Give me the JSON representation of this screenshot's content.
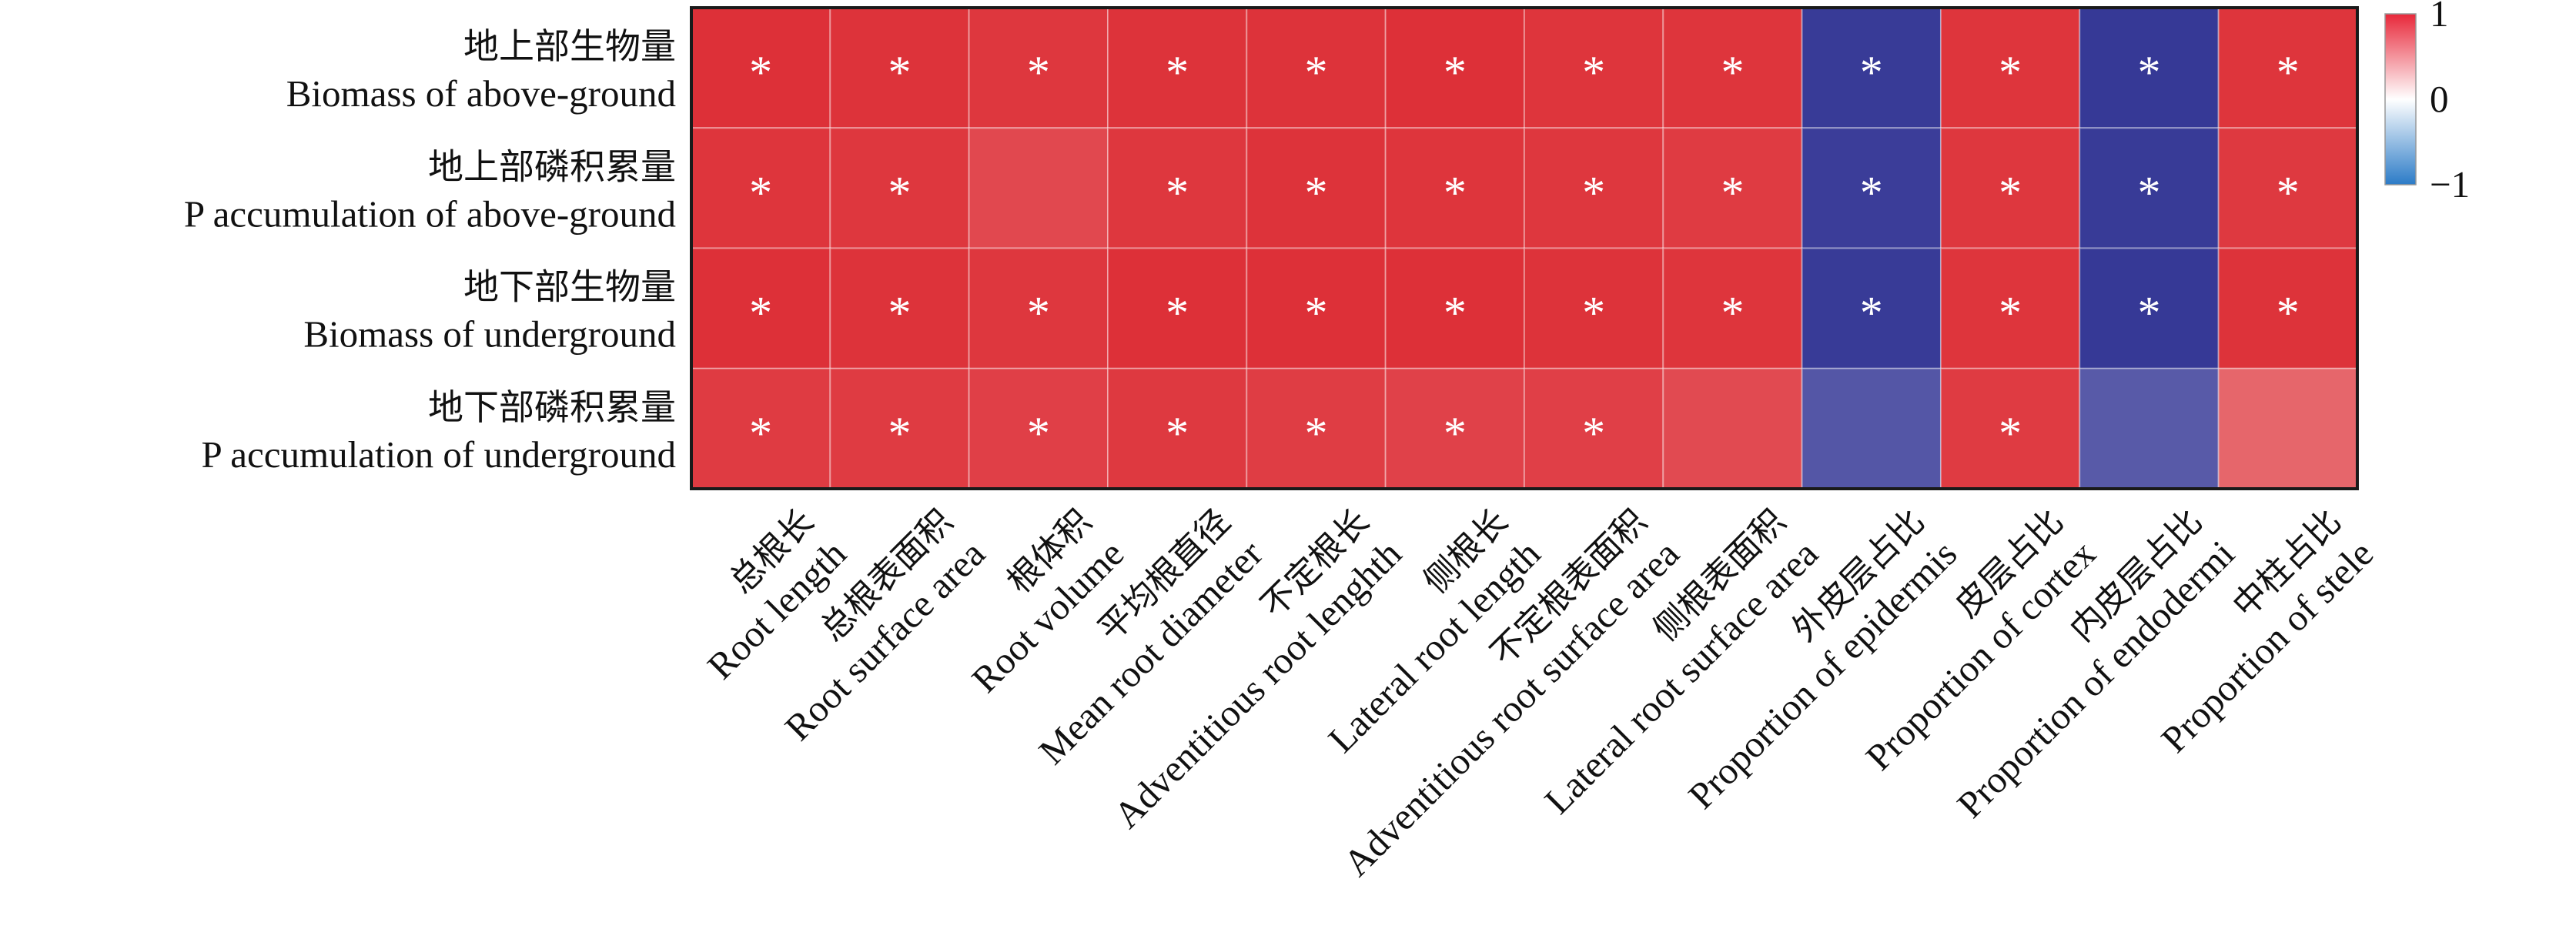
{
  "chart_data": {
    "type": "heatmap",
    "title": "",
    "xlabel": "",
    "ylabel": "",
    "rows": [
      {
        "zh": "地上部生物量",
        "en": "Biomass of above-ground"
      },
      {
        "zh": "地上部磷积累量",
        "en": "P accumulation of above-ground"
      },
      {
        "zh": "地下部生物量",
        "en": "Biomass of underground"
      },
      {
        "zh": "地下部磷积累量",
        "en": "P accumulation of underground"
      }
    ],
    "columns": [
      {
        "zh": "总根长",
        "en": "Root length"
      },
      {
        "zh": "总根表面积",
        "en": "Root surface area"
      },
      {
        "zh": "根体积",
        "en": "Root volume"
      },
      {
        "zh": "平均根直径",
        "en": "Mean root diameter"
      },
      {
        "zh": "不定根长",
        "en": "Adventitious root lenghth"
      },
      {
        "zh": "侧根长",
        "en": "Lateral root length"
      },
      {
        "zh": "不定根表面积",
        "en": "Adventitious root surface area"
      },
      {
        "zh": "侧根表面积",
        "en": "Lateral root surface area"
      },
      {
        "zh": "外皮层占比",
        "en": "Proportion of epidermis"
      },
      {
        "zh": "皮层占比",
        "en": "Proportion of cortex"
      },
      {
        "zh": "内皮层占比",
        "en": "Proportion of endodermi"
      },
      {
        "zh": "中柱占比",
        "en": "Proportion of stele"
      }
    ],
    "values": [
      [
        0.97,
        0.96,
        0.94,
        0.96,
        0.96,
        0.97,
        0.95,
        0.95,
        -0.95,
        0.95,
        -0.96,
        0.95
      ],
      [
        0.95,
        0.94,
        0.86,
        0.94,
        0.96,
        0.95,
        0.94,
        0.92,
        -0.94,
        0.94,
        -0.95,
        0.93
      ],
      [
        0.97,
        0.96,
        0.94,
        0.97,
        0.97,
        0.97,
        0.96,
        0.95,
        -0.95,
        0.95,
        -0.96,
        0.96
      ],
      [
        0.92,
        0.92,
        0.9,
        0.93,
        0.91,
        0.89,
        0.9,
        0.85,
        -0.82,
        0.92,
        -0.8,
        0.72
      ]
    ],
    "significance": [
      [
        "*",
        "*",
        "*",
        "*",
        "*",
        "*",
        "*",
        "*",
        "*",
        "*",
        "*",
        "*"
      ],
      [
        "*",
        "*",
        "",
        "*",
        "*",
        "*",
        "*",
        "*",
        "*",
        "*",
        "*",
        "*"
      ],
      [
        "*",
        "*",
        "*",
        "*",
        "*",
        "*",
        "*",
        "*",
        "*",
        "*",
        "*",
        "*"
      ],
      [
        "*",
        "*",
        "*",
        "*",
        "*",
        "*",
        "*",
        "",
        "",
        "*",
        "",
        ""
      ]
    ],
    "color_scale": {
      "min": -1,
      "max": 1,
      "ticks": [
        {
          "value": 1,
          "label": "1"
        },
        {
          "value": 0,
          "label": "0"
        },
        {
          "value": -1,
          "label": "−1"
        }
      ],
      "stops": [
        {
          "value": -1,
          "color": "#2b7bc7"
        },
        {
          "value": 0,
          "color": "#ffffff"
        },
        {
          "value": 1,
          "color": "#e8283a"
        }
      ],
      "cell_positive_color": "#dc2a32",
      "cell_negative_color": "#2e3192"
    },
    "grid": true,
    "legend_position": "right"
  }
}
